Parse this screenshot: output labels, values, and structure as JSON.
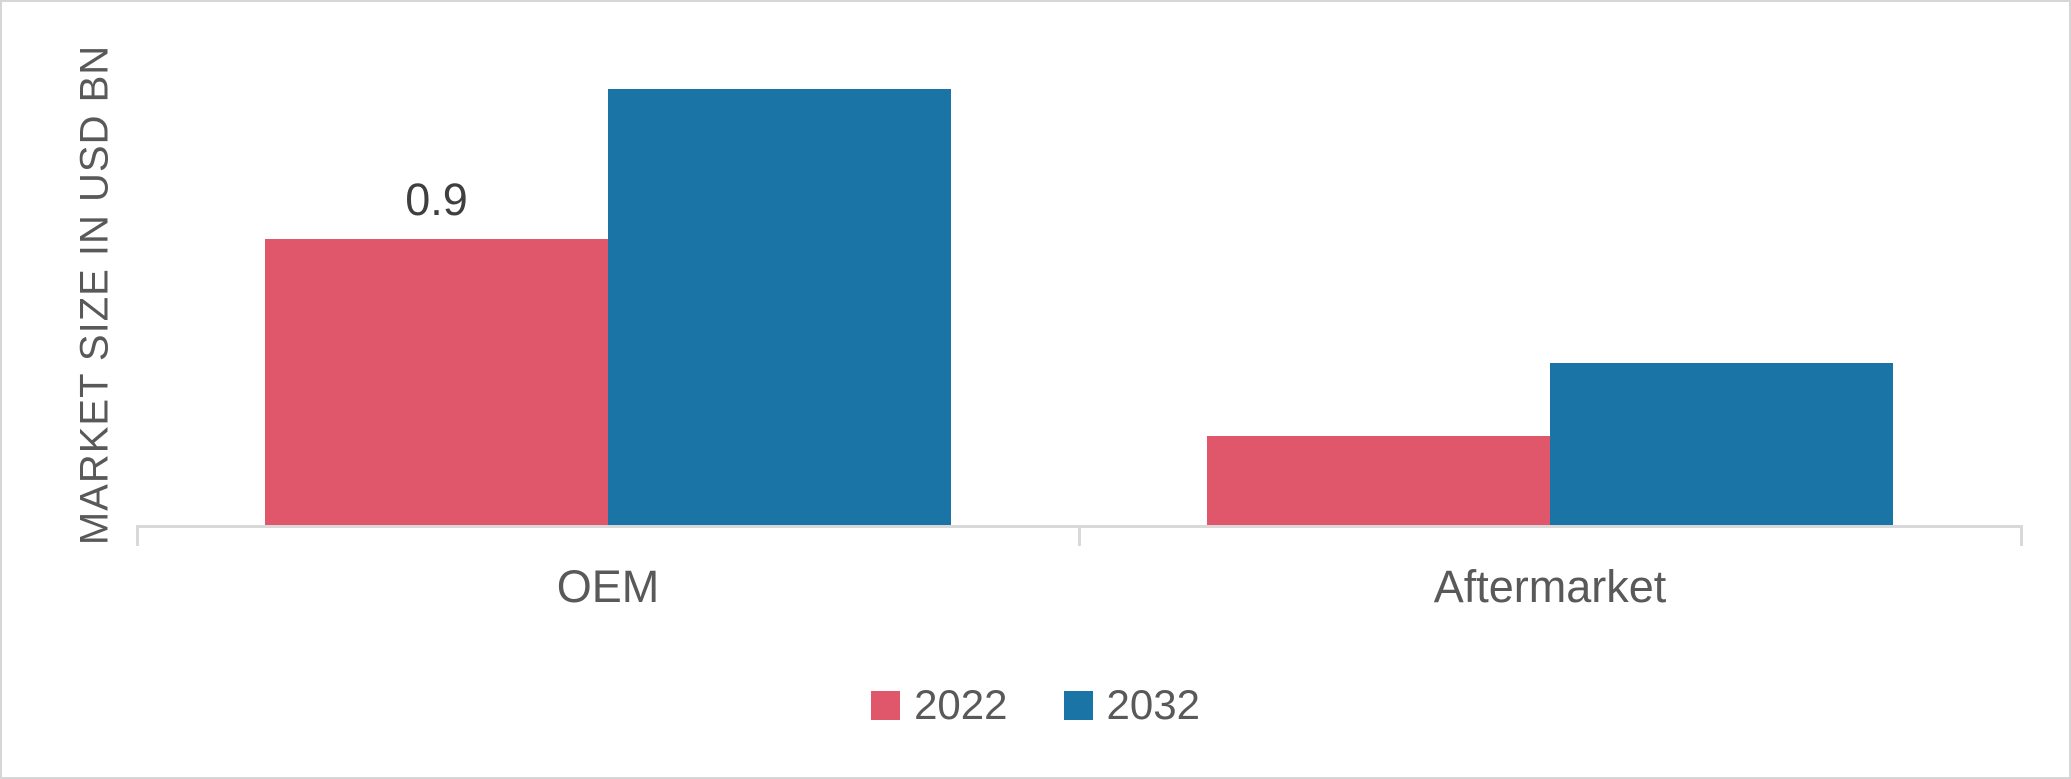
{
  "chart_data": {
    "type": "bar",
    "title": "",
    "xlabel": "",
    "ylabel": "MARKET SIZE IN USD BN",
    "categories": [
      "OEM",
      "Aftermarket"
    ],
    "series": [
      {
        "name": "2022",
        "color": "#e0566b",
        "values": [
          0.9,
          0.28
        ]
      },
      {
        "name": "2032",
        "color": "#1a74a6",
        "values": [
          1.37,
          0.51
        ]
      }
    ],
    "data_labels": [
      {
        "series_index": 0,
        "category_index": 0,
        "text": "0.9"
      }
    ],
    "ylim": [
      0,
      1.45
    ],
    "grid": false,
    "legend_position": "bottom-center",
    "axis_color": "#d9d9d9",
    "text_color": "#595959",
    "data_label_color": "#3f3f3f"
  }
}
